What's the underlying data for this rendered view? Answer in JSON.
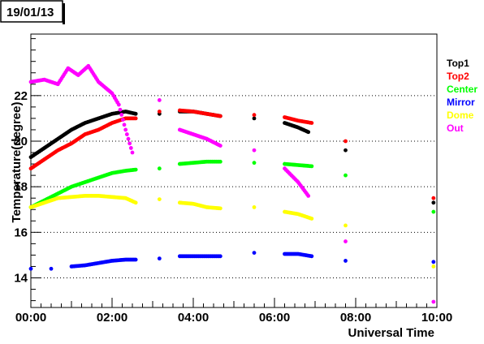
{
  "chart_data": {
    "type": "scatter",
    "title": "19/01/13",
    "xlabel": "Universal Time",
    "ylabel": "Temperature(degree)",
    "xlim": [
      "00:00",
      "10:00"
    ],
    "ylim": [
      12.7,
      24.7
    ],
    "x_ticks": [
      "00:00",
      "02:00",
      "04:00",
      "06:00",
      "08:00",
      "10:00"
    ],
    "y_ticks": [
      14,
      16,
      18,
      20,
      22
    ],
    "grid": "horizontal-dotted",
    "legend_position": "right",
    "colors": {
      "Top1": "#000000",
      "Top2": "#ff0000",
      "Center": "#00ff00",
      "Mirror": "#0000ff",
      "Dome": "#ffff00",
      "Out": "#ff00ff"
    },
    "series": [
      {
        "name": "Top1",
        "color": "#000000",
        "points": [
          [
            "00:00",
            19.3
          ],
          [
            "00:20",
            19.7
          ],
          [
            "00:40",
            20.1
          ],
          [
            "01:00",
            20.5
          ],
          [
            "01:20",
            20.8
          ],
          [
            "01:40",
            21.0
          ],
          [
            "02:00",
            21.2
          ],
          [
            "02:20",
            21.3
          ],
          [
            "02:35",
            21.2
          ],
          [
            "03:10",
            21.2
          ],
          [
            "03:40",
            21.3
          ],
          [
            "04:00",
            21.3
          ],
          [
            "04:20",
            21.2
          ],
          [
            "04:40",
            21.1
          ],
          [
            "05:30",
            21.0
          ],
          [
            "06:15",
            20.8
          ],
          [
            "06:35",
            20.6
          ],
          [
            "06:50",
            20.4
          ],
          [
            "07:45",
            19.6
          ],
          [
            "09:55",
            17.3
          ]
        ]
      },
      {
        "name": "Top2",
        "color": "#ff0000",
        "points": [
          [
            "00:00",
            18.8
          ],
          [
            "00:20",
            19.2
          ],
          [
            "00:40",
            19.6
          ],
          [
            "01:00",
            19.9
          ],
          [
            "01:20",
            20.3
          ],
          [
            "01:40",
            20.5
          ],
          [
            "02:00",
            20.8
          ],
          [
            "02:20",
            21.0
          ],
          [
            "02:35",
            21.0
          ],
          [
            "03:10",
            21.3
          ],
          [
            "03:40",
            21.35
          ],
          [
            "04:00",
            21.3
          ],
          [
            "04:20",
            21.2
          ],
          [
            "04:40",
            21.1
          ],
          [
            "05:30",
            21.15
          ],
          [
            "06:15",
            21.05
          ],
          [
            "06:35",
            20.9
          ],
          [
            "06:55",
            20.8
          ],
          [
            "07:45",
            20.0
          ],
          [
            "09:55",
            17.5
          ]
        ]
      },
      {
        "name": "Center",
        "color": "#00ff00",
        "points": [
          [
            "00:00",
            17.1
          ],
          [
            "00:20",
            17.4
          ],
          [
            "00:40",
            17.7
          ],
          [
            "01:00",
            18.0
          ],
          [
            "01:20",
            18.2
          ],
          [
            "01:40",
            18.4
          ],
          [
            "02:00",
            18.6
          ],
          [
            "02:20",
            18.7
          ],
          [
            "02:35",
            18.75
          ],
          [
            "03:10",
            18.8
          ],
          [
            "03:40",
            19.0
          ],
          [
            "04:00",
            19.05
          ],
          [
            "04:20",
            19.1
          ],
          [
            "04:40",
            19.1
          ],
          [
            "05:30",
            19.05
          ],
          [
            "06:15",
            19.0
          ],
          [
            "06:35",
            18.95
          ],
          [
            "06:55",
            18.9
          ],
          [
            "07:45",
            18.5
          ],
          [
            "09:55",
            16.9
          ]
        ]
      },
      {
        "name": "Mirror",
        "color": "#0000ff",
        "points": [
          [
            "00:00",
            14.4
          ],
          [
            "00:30",
            14.4
          ],
          [
            "01:00",
            14.5
          ],
          [
            "01:20",
            14.55
          ],
          [
            "01:40",
            14.65
          ],
          [
            "02:00",
            14.75
          ],
          [
            "02:20",
            14.8
          ],
          [
            "02:35",
            14.8
          ],
          [
            "03:10",
            14.85
          ],
          [
            "03:40",
            14.95
          ],
          [
            "04:00",
            14.95
          ],
          [
            "04:20",
            14.95
          ],
          [
            "04:40",
            14.95
          ],
          [
            "05:30",
            15.1
          ],
          [
            "06:15",
            15.05
          ],
          [
            "06:35",
            15.05
          ],
          [
            "06:55",
            14.95
          ],
          [
            "07:45",
            14.75
          ],
          [
            "09:55",
            14.7
          ]
        ]
      },
      {
        "name": "Dome",
        "color": "#ffff00",
        "points": [
          [
            "00:00",
            17.1
          ],
          [
            "00:20",
            17.3
          ],
          [
            "00:40",
            17.5
          ],
          [
            "01:00",
            17.55
          ],
          [
            "01:20",
            17.6
          ],
          [
            "01:40",
            17.6
          ],
          [
            "02:00",
            17.55
          ],
          [
            "02:20",
            17.5
          ],
          [
            "02:35",
            17.3
          ],
          [
            "03:10",
            17.45
          ],
          [
            "03:40",
            17.3
          ],
          [
            "04:00",
            17.25
          ],
          [
            "04:20",
            17.1
          ],
          [
            "04:40",
            17.05
          ],
          [
            "05:30",
            17.1
          ],
          [
            "06:15",
            16.9
          ],
          [
            "06:35",
            16.8
          ],
          [
            "06:55",
            16.6
          ],
          [
            "07:45",
            16.3
          ],
          [
            "09:55",
            14.5
          ]
        ]
      },
      {
        "name": "Out",
        "color": "#ff00ff",
        "points": [
          [
            "00:00",
            22.6
          ],
          [
            "00:20",
            22.7
          ],
          [
            "00:40",
            22.5
          ],
          [
            "00:55",
            23.2
          ],
          [
            "01:10",
            22.9
          ],
          [
            "01:25",
            23.3
          ],
          [
            "01:40",
            22.6
          ],
          [
            "02:00",
            22.1
          ],
          [
            "02:10",
            21.6
          ],
          [
            "02:20",
            20.5
          ],
          [
            "02:30",
            19.5
          ],
          [
            "03:10",
            21.8
          ],
          [
            "03:40",
            20.5
          ],
          [
            "04:00",
            20.3
          ],
          [
            "04:20",
            20.1
          ],
          [
            "04:40",
            19.8
          ],
          [
            "05:30",
            19.6
          ],
          [
            "06:15",
            18.8
          ],
          [
            "06:35",
            18.2
          ],
          [
            "06:50",
            17.6
          ],
          [
            "07:45",
            15.6
          ],
          [
            "09:55",
            12.95
          ]
        ]
      }
    ]
  }
}
